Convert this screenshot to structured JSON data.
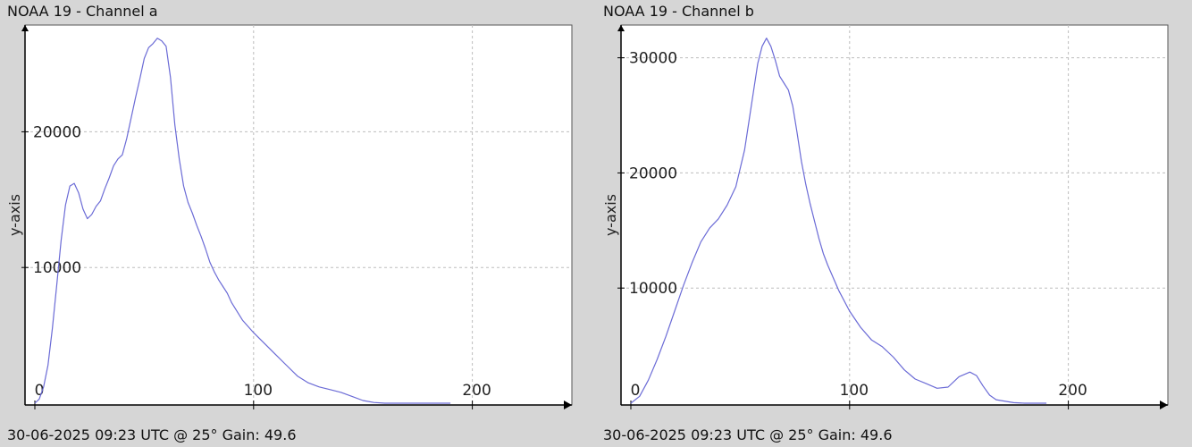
{
  "theme": {
    "background": "#d6d6d6",
    "plot_background": "#ffffff",
    "grid_color": "#bdbdbd",
    "axis_color": "#000000",
    "line_color": "#6b6bd6"
  },
  "chart_data": [
    {
      "type": "line",
      "title": "NOAA 19 - Channel a",
      "footer": "30-06-2025 09:23 UTC @ 25° Gain: 49.6",
      "xlabel": "",
      "ylabel": "y-axis",
      "xlim": [
        0,
        250
      ],
      "ylim": [
        0,
        28000
      ],
      "xticks": [
        0,
        100,
        200
      ],
      "yticks": [
        10000,
        20000
      ],
      "grid": true,
      "series": [
        {
          "x": [
            0,
            2,
            4,
            6,
            8,
            10,
            12,
            14,
            16,
            18,
            20,
            22,
            24,
            26,
            28,
            30,
            32,
            34,
            36,
            38,
            40,
            42,
            44,
            46,
            48,
            50,
            52,
            54,
            56,
            58,
            60,
            62,
            64,
            66,
            68,
            70,
            72,
            74,
            76,
            78,
            80,
            82,
            84,
            86,
            88,
            90,
            95,
            100,
            105,
            110,
            115,
            120,
            125,
            130,
            135,
            140,
            145,
            150,
            155,
            160,
            165,
            170,
            175,
            180,
            185,
            190
          ],
          "values": [
            0,
            300,
            1200,
            2800,
            5500,
            8700,
            12000,
            14600,
            16000,
            16200,
            15500,
            14300,
            13600,
            13900,
            14500,
            14900,
            15800,
            16600,
            17500,
            18000,
            18300,
            19500,
            21000,
            22500,
            23900,
            25400,
            26200,
            26500,
            26900,
            26700,
            26300,
            24000,
            20500,
            18000,
            16000,
            14800,
            14000,
            13100,
            12300,
            11400,
            10400,
            9700,
            9100,
            8600,
            8100,
            7400,
            6100,
            5200,
            4400,
            3600,
            2800,
            2000,
            1500,
            1200,
            1000,
            800,
            500,
            200,
            50,
            0,
            0,
            0,
            0,
            0,
            0,
            0
          ]
        }
      ]
    },
    {
      "type": "line",
      "title": "NOAA 19 - Channel b",
      "footer": "30-06-2025 09:23 UTC @ 25° Gain: 49.6",
      "xlabel": "",
      "ylabel": "y-axis",
      "xlim": [
        0,
        250
      ],
      "ylim": [
        0,
        33000
      ],
      "xticks": [
        0,
        100,
        200
      ],
      "yticks": [
        10000,
        20000,
        30000
      ],
      "grid": true,
      "series": [
        {
          "x": [
            0,
            4,
            8,
            12,
            16,
            20,
            24,
            28,
            32,
            36,
            40,
            44,
            48,
            52,
            54,
            56,
            58,
            60,
            62,
            64,
            66,
            68,
            70,
            72,
            74,
            76,
            78,
            80,
            82,
            84,
            86,
            88,
            90,
            95,
            100,
            105,
            110,
            115,
            120,
            125,
            130,
            135,
            140,
            145,
            150,
            155,
            158,
            161,
            164,
            167,
            170,
            175,
            180,
            185,
            190
          ],
          "values": [
            0,
            600,
            2000,
            3800,
            5800,
            8000,
            10200,
            12200,
            14000,
            15200,
            16000,
            17200,
            18800,
            22000,
            24500,
            27000,
            29500,
            31000,
            31700,
            31000,
            29800,
            28400,
            27800,
            27200,
            25800,
            23500,
            21000,
            19000,
            17300,
            15800,
            14300,
            13000,
            12000,
            9800,
            8000,
            6600,
            5500,
            4900,
            4000,
            2900,
            2100,
            1700,
            1300,
            1400,
            2300,
            2700,
            2400,
            1500,
            700,
            300,
            200,
            50,
            0,
            0,
            0
          ]
        }
      ]
    }
  ]
}
